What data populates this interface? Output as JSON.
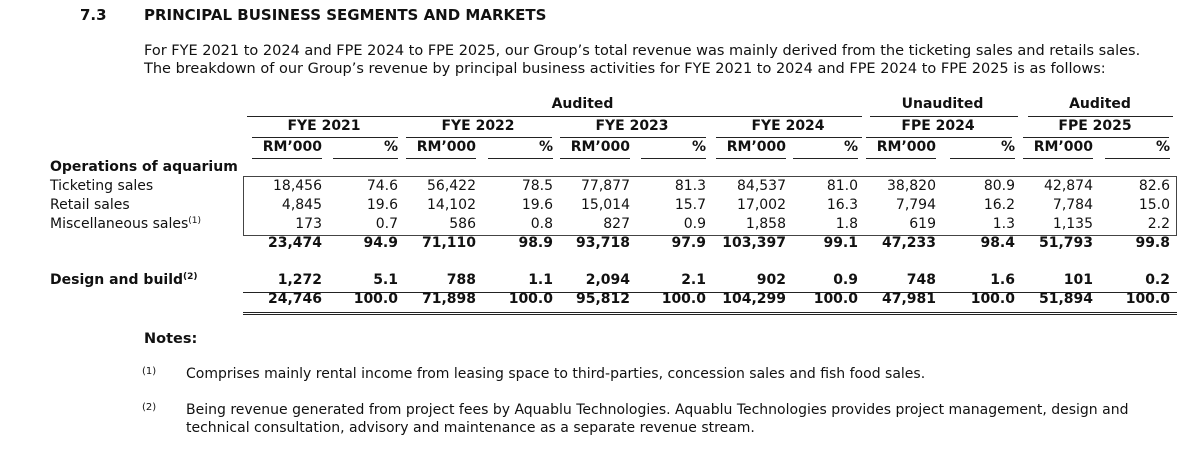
{
  "section": {
    "number": "7.3",
    "title": "PRINCIPAL BUSINESS SEGMENTS AND MARKETS",
    "intro": "For FYE 2021 to 2024 and FPE 2024 to FPE 2025, our Group’s total revenue was mainly derived from the ticketing sales and retails sales. The breakdown of our Group’s revenue by principal business activities for FYE 2021 to 2024 and FPE 2024 to FPE 2025 is as follows:"
  },
  "table": {
    "audit_groups": [
      "Audited",
      "Unaudited",
      "Audited"
    ],
    "periods": [
      "FYE 2021",
      "FYE 2022",
      "FYE 2023",
      "FYE 2024",
      "FPE 2024",
      "FPE 2025"
    ],
    "unit_headers": [
      "RM’000",
      "%"
    ],
    "section_label": "Operations of aquarium",
    "rows": [
      {
        "label": "Ticketing sales",
        "note": "",
        "bold": false,
        "values": [
          "18,456",
          "74.6",
          "56,422",
          "78.5",
          "77,877",
          "81.3",
          "84,537",
          "81.0",
          "38,820",
          "80.9",
          "42,874",
          "82.6"
        ]
      },
      {
        "label": "Retail sales",
        "note": "",
        "bold": false,
        "values": [
          "4,845",
          "19.6",
          "14,102",
          "19.6",
          "15,014",
          "15.7",
          "17,002",
          "16.3",
          "7,794",
          "16.2",
          "7,784",
          "15.0"
        ]
      },
      {
        "label": "Miscellaneous sales",
        "note": "(1)",
        "bold": false,
        "values": [
          "173",
          "0.7",
          "586",
          "0.8",
          "827",
          "0.9",
          "1,858",
          "1.8",
          "619",
          "1.3",
          "1,135",
          "2.2"
        ]
      },
      {
        "label": "",
        "note": "",
        "bold": true,
        "values": [
          "23,474",
          "94.9",
          "71,110",
          "98.9",
          "93,718",
          "97.9",
          "103,397",
          "99.1",
          "47,233",
          "98.4",
          "51,793",
          "99.8"
        ]
      },
      {
        "label": "Design and build",
        "note": "(2)",
        "bold": true,
        "values": [
          "1,272",
          "5.1",
          "788",
          "1.1",
          "2,094",
          "2.1",
          "902",
          "0.9",
          "748",
          "1.6",
          "101",
          "0.2"
        ]
      },
      {
        "label": "",
        "note": "",
        "bold": true,
        "values": [
          "24,746",
          "100.0",
          "71,898",
          "100.0",
          "95,812",
          "100.0",
          "104,299",
          "100.0",
          "47,981",
          "100.0",
          "51,894",
          "100.0"
        ]
      }
    ]
  },
  "notes": {
    "heading": "Notes:",
    "items": [
      {
        "mark": "(1)",
        "text": "Comprises mainly rental income from leasing space to third-parties, concession sales and fish food sales."
      },
      {
        "mark": "(2)",
        "text": "Being revenue generated from project fees by Aquablu Technologies. Aquablu Technologies provides project management, design and technical consultation, advisory and maintenance as a separate revenue stream."
      }
    ]
  }
}
